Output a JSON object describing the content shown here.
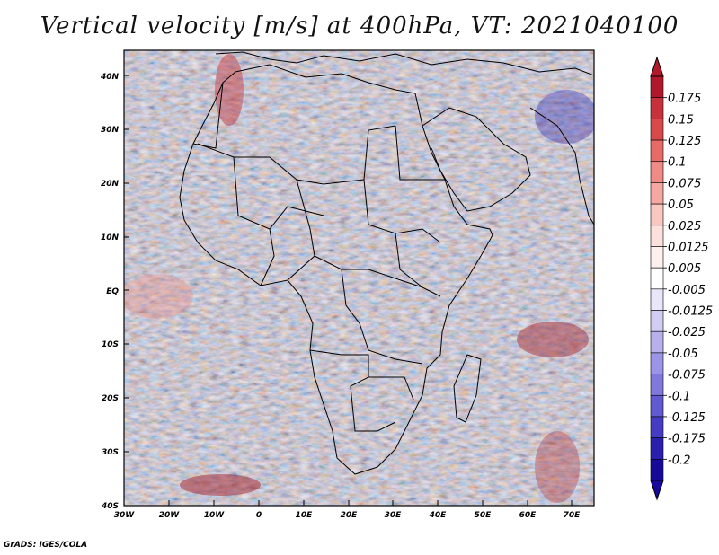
{
  "title": "Vertical velocity [m/s] at 400hPa, VT: 2021040100",
  "credit": "GrADS: IGES/COLA",
  "axes": {
    "lat_labels": [
      "40N",
      "30N",
      "20N",
      "10N",
      "EQ",
      "10S",
      "20S",
      "30S",
      "40S"
    ],
    "lon_labels": [
      "30W",
      "20W",
      "10W",
      "0",
      "10E",
      "20E",
      "30E",
      "40E",
      "50E",
      "60E",
      "70E"
    ]
  },
  "colorbar": {
    "labels": [
      "0.175",
      "0.15",
      "0.125",
      "0.1",
      "0.075",
      "0.05",
      "0.025",
      "0.0125",
      "0.005",
      "-0.005",
      "-0.0125",
      "-0.025",
      "-0.05",
      "-0.075",
      "-0.1",
      "-0.125",
      "-0.175",
      "-0.2"
    ],
    "colors": [
      "#b2182b",
      "#c7323a",
      "#d84a4a",
      "#e66a66",
      "#ef8a84",
      "#f5a8a2",
      "#f9c6c0",
      "#fce0dc",
      "#fdf0ee",
      "#ffffff",
      "#e8e6f8",
      "#d0ccf2",
      "#b6b0ec",
      "#9c94e6",
      "#8078dd",
      "#625ad2",
      "#453cc4",
      "#2a20b0",
      "#170a9a"
    ]
  },
  "map": {
    "region": "Africa",
    "lon_range": [
      -30,
      75
    ],
    "lat_range": [
      -40,
      45
    ]
  }
}
